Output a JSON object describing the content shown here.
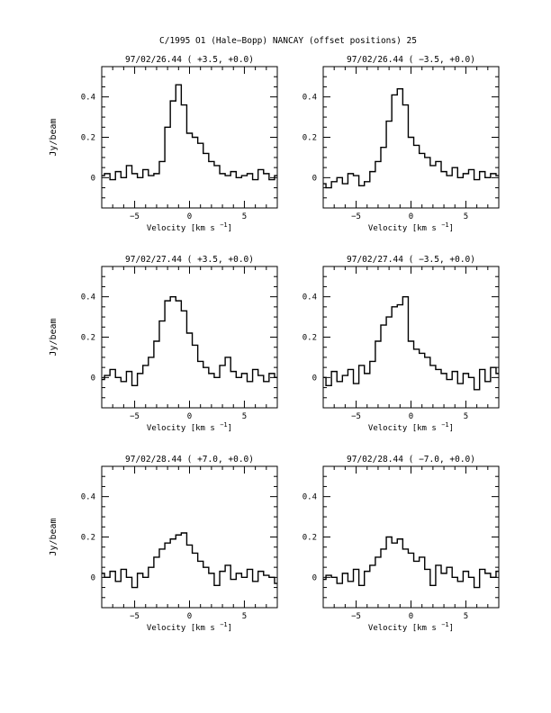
{
  "figure": {
    "title": "C/1995 O1 (Hale−Bopp)   NANCAY     (offset positions)   25",
    "ylabel": "Jy/beam",
    "xlabel": "Velocity [km s",
    "xlabel_exp": "−1",
    "xlabel_close": "]"
  },
  "chart_data": [
    {
      "type": "line",
      "title": "97/02/26.44  ( +3.5, +0.0)",
      "xlim": [
        -8,
        8
      ],
      "ylim": [
        -0.15,
        0.55
      ],
      "xticks": [
        -5,
        0,
        5
      ],
      "xtick_labels": [
        "−5",
        "0",
        "5"
      ],
      "yticks": [
        0,
        0.2,
        0.4
      ],
      "ytick_labels": [
        "0",
        "0.2",
        "0.4"
      ],
      "series": [
        {
          "x": [
            -8,
            -7.5,
            -7,
            -6.5,
            -6,
            -5.5,
            -5,
            -4.5,
            -4,
            -3.5,
            -3,
            -2.5,
            -2,
            -1.5,
            -1,
            -0.5,
            0,
            0.5,
            1,
            1.5,
            2,
            2.5,
            3,
            3.5,
            4,
            4.5,
            5,
            5.5,
            6,
            6.5,
            7,
            7.5,
            8
          ],
          "y": [
            0.01,
            0.02,
            -0.01,
            0.03,
            0.0,
            0.06,
            0.02,
            0.0,
            0.04,
            0.01,
            0.02,
            0.08,
            0.25,
            0.38,
            0.46,
            0.36,
            0.22,
            0.2,
            0.17,
            0.12,
            0.08,
            0.06,
            0.02,
            0.01,
            0.03,
            0.0,
            0.01,
            0.02,
            -0.01,
            0.04,
            0.02,
            -0.01,
            0.01
          ]
        }
      ]
    },
    {
      "type": "line",
      "title": "97/02/26.44  ( −3.5, +0.0)",
      "xlim": [
        -8,
        8
      ],
      "ylim": [
        -0.15,
        0.55
      ],
      "xticks": [
        -5,
        0,
        5
      ],
      "xtick_labels": [
        "−5",
        "0",
        "5"
      ],
      "yticks": [
        0,
        0.2,
        0.4
      ],
      "ytick_labels": [
        "0",
        "0.2",
        "0.4"
      ],
      "series": [
        {
          "x": [
            -8,
            -7.5,
            -7,
            -6.5,
            -6,
            -5.5,
            -5,
            -4.5,
            -4,
            -3.5,
            -3,
            -2.5,
            -2,
            -1.5,
            -1,
            -0.5,
            0,
            0.5,
            1,
            1.5,
            2,
            2.5,
            3,
            3.5,
            4,
            4.5,
            5,
            5.5,
            6,
            6.5,
            7,
            7.5,
            8
          ],
          "y": [
            -0.03,
            -0.05,
            -0.02,
            0.0,
            -0.03,
            0.02,
            0.01,
            -0.04,
            -0.02,
            0.03,
            0.08,
            0.15,
            0.28,
            0.41,
            0.44,
            0.36,
            0.2,
            0.16,
            0.12,
            0.1,
            0.06,
            0.08,
            0.03,
            0.01,
            0.05,
            0.0,
            0.02,
            0.04,
            -0.01,
            0.03,
            0.0,
            0.02,
            0.01
          ]
        }
      ]
    },
    {
      "type": "line",
      "title": "97/02/27.44  ( +3.5, +0.0)",
      "xlim": [
        -8,
        8
      ],
      "ylim": [
        -0.15,
        0.55
      ],
      "xticks": [
        -5,
        0,
        5
      ],
      "xtick_labels": [
        "−5",
        "0",
        "5"
      ],
      "yticks": [
        0,
        0.2,
        0.4
      ],
      "ytick_labels": [
        "0",
        "0.2",
        "0.4"
      ],
      "series": [
        {
          "x": [
            -8,
            -7.5,
            -7,
            -6.5,
            -6,
            -5.5,
            -5,
            -4.5,
            -4,
            -3.5,
            -3,
            -2.5,
            -2,
            -1.5,
            -1,
            -0.5,
            0,
            0.5,
            1,
            1.5,
            2,
            2.5,
            3,
            3.5,
            4,
            4.5,
            5,
            5.5,
            6,
            6.5,
            7,
            7.5,
            8
          ],
          "y": [
            -0.01,
            0.01,
            0.04,
            0.0,
            -0.02,
            0.03,
            -0.04,
            0.02,
            0.06,
            0.1,
            0.18,
            0.28,
            0.38,
            0.4,
            0.38,
            0.33,
            0.22,
            0.16,
            0.08,
            0.05,
            0.02,
            0.0,
            0.06,
            0.1,
            0.03,
            0.0,
            0.02,
            -0.02,
            0.04,
            0.01,
            -0.02,
            0.02,
            0.0
          ]
        }
      ]
    },
    {
      "type": "line",
      "title": "97/02/27.44  ( −3.5, +0.0)",
      "xlim": [
        -8,
        8
      ],
      "ylim": [
        -0.15,
        0.55
      ],
      "xticks": [
        -5,
        0,
        5
      ],
      "xtick_labels": [
        "−5",
        "0",
        "5"
      ],
      "yticks": [
        0,
        0.2,
        0.4
      ],
      "ytick_labels": [
        "0",
        "0.2",
        "0.4"
      ],
      "series": [
        {
          "x": [
            -8,
            -7.5,
            -7,
            -6.5,
            -6,
            -5.5,
            -5,
            -4.5,
            -4,
            -3.5,
            -3,
            -2.5,
            -2,
            -1.5,
            -1,
            -0.5,
            0,
            0.5,
            1,
            1.5,
            2,
            2.5,
            3,
            3.5,
            4,
            4.5,
            5,
            5.5,
            6,
            6.5,
            7,
            7.5,
            8
          ],
          "y": [
            0.0,
            -0.04,
            0.03,
            -0.02,
            0.01,
            0.04,
            -0.03,
            0.06,
            0.02,
            0.08,
            0.18,
            0.26,
            0.3,
            0.35,
            0.36,
            0.4,
            0.18,
            0.14,
            0.12,
            0.1,
            0.06,
            0.04,
            0.02,
            -0.01,
            0.03,
            -0.03,
            0.02,
            0.0,
            -0.06,
            0.04,
            -0.02,
            0.05,
            0.02
          ]
        }
      ]
    },
    {
      "type": "line",
      "title": "97/02/28.44  ( +7.0, +0.0)",
      "xlim": [
        -8,
        8
      ],
      "ylim": [
        -0.15,
        0.55
      ],
      "xticks": [
        -5,
        0,
        5
      ],
      "xtick_labels": [
        "−5",
        "0",
        "5"
      ],
      "yticks": [
        0,
        0.2,
        0.4
      ],
      "ytick_labels": [
        "0",
        "0.2",
        "0.4"
      ],
      "series": [
        {
          "x": [
            -8,
            -7.5,
            -7,
            -6.5,
            -6,
            -5.5,
            -5,
            -4.5,
            -4,
            -3.5,
            -3,
            -2.5,
            -2,
            -1.5,
            -1,
            -0.5,
            0,
            0.5,
            1,
            1.5,
            2,
            2.5,
            3,
            3.5,
            4,
            4.5,
            5,
            5.5,
            6,
            6.5,
            7,
            7.5,
            8
          ],
          "y": [
            0.02,
            0.0,
            0.03,
            -0.02,
            0.04,
            0.0,
            -0.05,
            0.02,
            0.0,
            0.05,
            0.1,
            0.14,
            0.17,
            0.19,
            0.21,
            0.22,
            0.16,
            0.12,
            0.08,
            0.05,
            0.02,
            -0.04,
            0.03,
            0.06,
            -0.01,
            0.02,
            0.0,
            0.04,
            -0.02,
            0.03,
            0.01,
            0.0,
            -0.03
          ]
        }
      ]
    },
    {
      "type": "line",
      "title": "97/02/28.44  ( −7.0, +0.0)",
      "xlim": [
        -8,
        8
      ],
      "ylim": [
        -0.15,
        0.55
      ],
      "xticks": [
        -5,
        0,
        5
      ],
      "xtick_labels": [
        "−5",
        "0",
        "5"
      ],
      "yticks": [
        0,
        0.2,
        0.4
      ],
      "ytick_labels": [
        "0",
        "0.2",
        "0.4"
      ],
      "series": [
        {
          "x": [
            -8,
            -7.5,
            -7,
            -6.5,
            -6,
            -5.5,
            -5,
            -4.5,
            -4,
            -3.5,
            -3,
            -2.5,
            -2,
            -1.5,
            -1,
            -0.5,
            0,
            0.5,
            1,
            1.5,
            2,
            2.5,
            3,
            3.5,
            4,
            4.5,
            5,
            5.5,
            6,
            6.5,
            7,
            7.5,
            8
          ],
          "y": [
            -0.01,
            0.01,
            0.0,
            -0.03,
            0.02,
            -0.02,
            0.04,
            -0.04,
            0.03,
            0.06,
            0.1,
            0.14,
            0.2,
            0.17,
            0.19,
            0.14,
            0.12,
            0.08,
            0.1,
            0.04,
            -0.04,
            0.06,
            0.02,
            0.05,
            0.0,
            -0.02,
            0.03,
            0.0,
            -0.05,
            0.04,
            0.02,
            0.0,
            0.03
          ]
        }
      ]
    }
  ]
}
